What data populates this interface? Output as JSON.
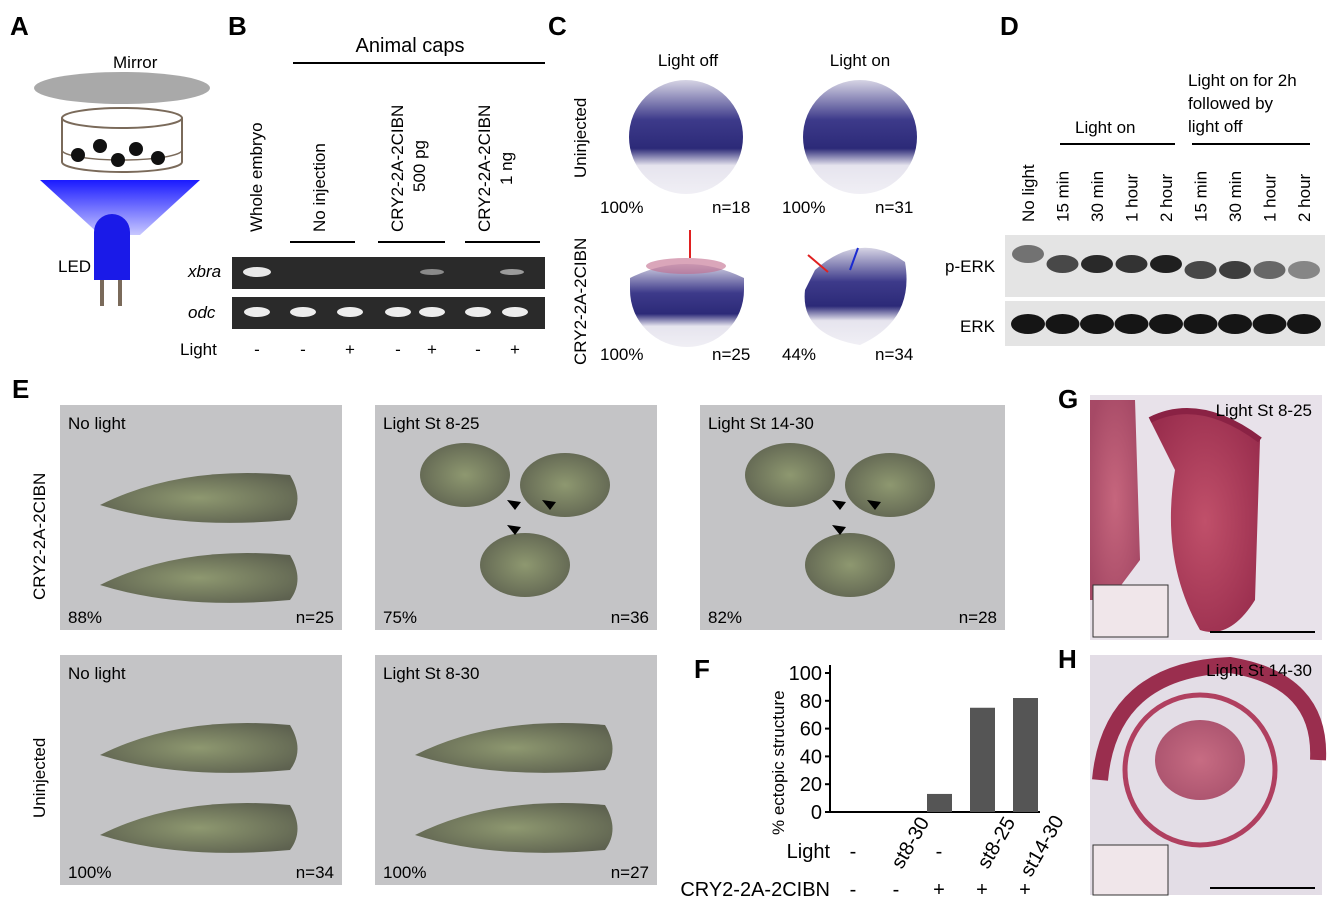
{
  "panels": {
    "A": {
      "label": "A",
      "mirror": "Mirror",
      "led": "LED"
    },
    "B": {
      "label": "B",
      "group_title": "Animal caps",
      "lanes": [
        "Whole embryo",
        "No injection",
        "CRY2-2A-2CIBN",
        "500 pg",
        "CRY2-2A-2CIBN",
        "1 ng"
      ],
      "genes": [
        "xbra",
        "odc"
      ],
      "light_label": "Light",
      "light_signs": [
        "-",
        "-",
        "+",
        "-",
        "+",
        "-",
        "+"
      ]
    },
    "C": {
      "label": "C",
      "cols": [
        "Light off",
        "Light on"
      ],
      "rows": [
        "Uninjected",
        "CRY2-2A-2CIBN"
      ],
      "stats": [
        {
          "pct": "100%",
          "n": "n=18"
        },
        {
          "pct": "100%",
          "n": "n=31"
        },
        {
          "pct": "100%",
          "n": "n=25"
        },
        {
          "pct": "44%",
          "n": "n=34"
        }
      ],
      "arrow_colors": {
        "red": "#e02020",
        "blue": "#1a2ad0"
      }
    },
    "D": {
      "label": "D",
      "group1": "Light on",
      "group2_lines": [
        "Light on for 2h",
        "followed by",
        "light off"
      ],
      "lanes": [
        "No light",
        "15 min",
        "30 min",
        "1 hour",
        "2 hour",
        "15 min",
        "30 min",
        "1 hour",
        "2 hour"
      ],
      "blots": [
        "p-ERK",
        "ERK"
      ]
    },
    "E": {
      "label": "E",
      "rows": [
        "CRY2-2A-2CIBN",
        "Uninjected"
      ],
      "images": [
        {
          "title": "No light",
          "pct": "88%",
          "n": "n=25"
        },
        {
          "title": "Light St 8-25",
          "pct": "75%",
          "n": "n=36"
        },
        {
          "title": "Light St 14-30",
          "pct": "82%",
          "n": "n=28"
        },
        {
          "title": "No light",
          "pct": "100%",
          "n": "n=34"
        },
        {
          "title": "Light St 8-30",
          "pct": "100%",
          "n": "n=27"
        }
      ]
    },
    "G": {
      "label": "G",
      "title": "Light St 8-25"
    },
    "H": {
      "label": "H",
      "title": "Light St 14-30"
    }
  },
  "chart_data": {
    "type": "bar",
    "panel_label": "F",
    "ylabel": "% ectopic structure",
    "ylim": [
      0,
      100
    ],
    "yticks": [
      "0",
      "20",
      "40",
      "60",
      "80",
      "100"
    ],
    "categories": [
      "-",
      "st8-30",
      "-",
      "st8-25",
      "st14-30"
    ],
    "row_labels": [
      "Light",
      "CRY2-2A-2CIBN"
    ],
    "cry_signs": [
      "-",
      "-",
      "+",
      "+",
      "+"
    ],
    "values": [
      0,
      0,
      13,
      75,
      82
    ],
    "bar_color": "#555555",
    "grid": false
  }
}
